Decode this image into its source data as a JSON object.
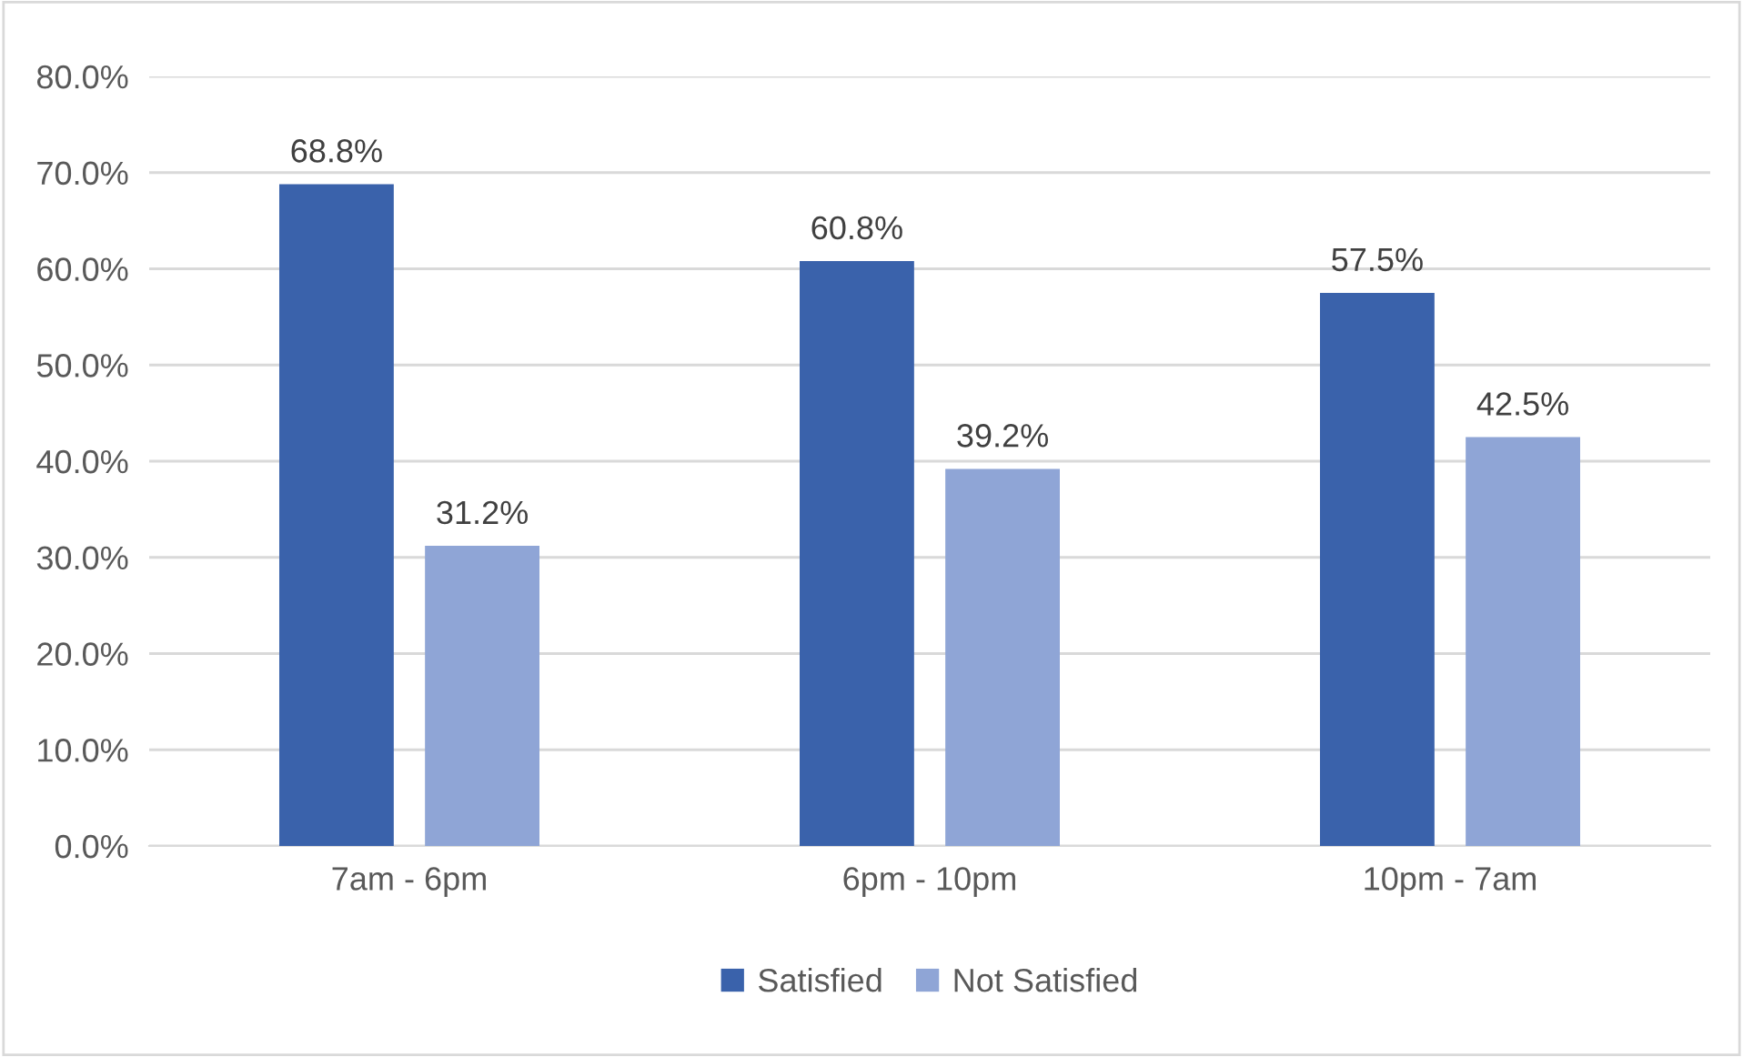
{
  "chart_data": {
    "type": "bar",
    "categories": [
      "7am - 6pm",
      "6pm - 10pm",
      "10pm - 7am"
    ],
    "series": [
      {
        "name": "Satisfied",
        "color": "#3a62ab",
        "values": [
          68.8,
          60.8,
          57.5
        ],
        "value_labels": [
          "68.8%",
          "60.8%",
          "57.5%"
        ]
      },
      {
        "name": "Not Satisfied",
        "color": "#8fa5d6",
        "values": [
          31.2,
          39.2,
          42.5
        ],
        "value_labels": [
          "31.2%",
          "39.2%",
          "42.5%"
        ]
      }
    ],
    "ylim": [
      0,
      80
    ],
    "yticks": [
      {
        "value": 0,
        "label": "0.0%"
      },
      {
        "value": 10,
        "label": "10.0%"
      },
      {
        "value": 20,
        "label": "20.0%"
      },
      {
        "value": 30,
        "label": "30.0%"
      },
      {
        "value": 40,
        "label": "40.0%"
      },
      {
        "value": 50,
        "label": "50.0%"
      },
      {
        "value": 60,
        "label": "60.0%"
      },
      {
        "value": 70,
        "label": "70.0%"
      },
      {
        "value": 80,
        "label": "80.0%"
      }
    ],
    "grid": "y",
    "legend": "bottom"
  }
}
